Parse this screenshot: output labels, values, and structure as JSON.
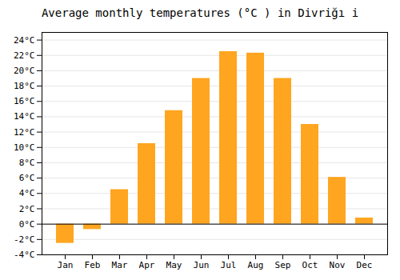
{
  "chart_data": {
    "type": "bar",
    "title": "Average monthly temperatures (°C ) in Divriğı i",
    "categories": [
      "Jan",
      "Feb",
      "Mar",
      "Apr",
      "May",
      "Jun",
      "Jul",
      "Aug",
      "Sep",
      "Oct",
      "Nov",
      "Dec"
    ],
    "values": [
      -2.5,
      -0.7,
      4.5,
      10.5,
      14.8,
      19.0,
      22.5,
      22.3,
      19.0,
      13.0,
      6.1,
      0.8
    ],
    "color": "#FFA520",
    "ylim": [
      -4,
      25
    ],
    "yticks": [
      {
        "value": -4,
        "label": "-4°C"
      },
      {
        "value": -2,
        "label": "-2°C"
      },
      {
        "value": 0,
        "label": "0°C"
      },
      {
        "value": 2,
        "label": "2°C"
      },
      {
        "value": 4,
        "label": "4°C"
      },
      {
        "value": 6,
        "label": "6°C"
      },
      {
        "value": 8,
        "label": "8°C"
      },
      {
        "value": 10,
        "label": "10°C"
      },
      {
        "value": 12,
        "label": "12°C"
      },
      {
        "value": 14,
        "label": "14°C"
      },
      {
        "value": 16,
        "label": "16°C"
      },
      {
        "value": 18,
        "label": "18°C"
      },
      {
        "value": 20,
        "label": "20°C"
      },
      {
        "value": 22,
        "label": "22°C"
      },
      {
        "value": 24,
        "label": "24°C"
      }
    ],
    "grid": true
  }
}
